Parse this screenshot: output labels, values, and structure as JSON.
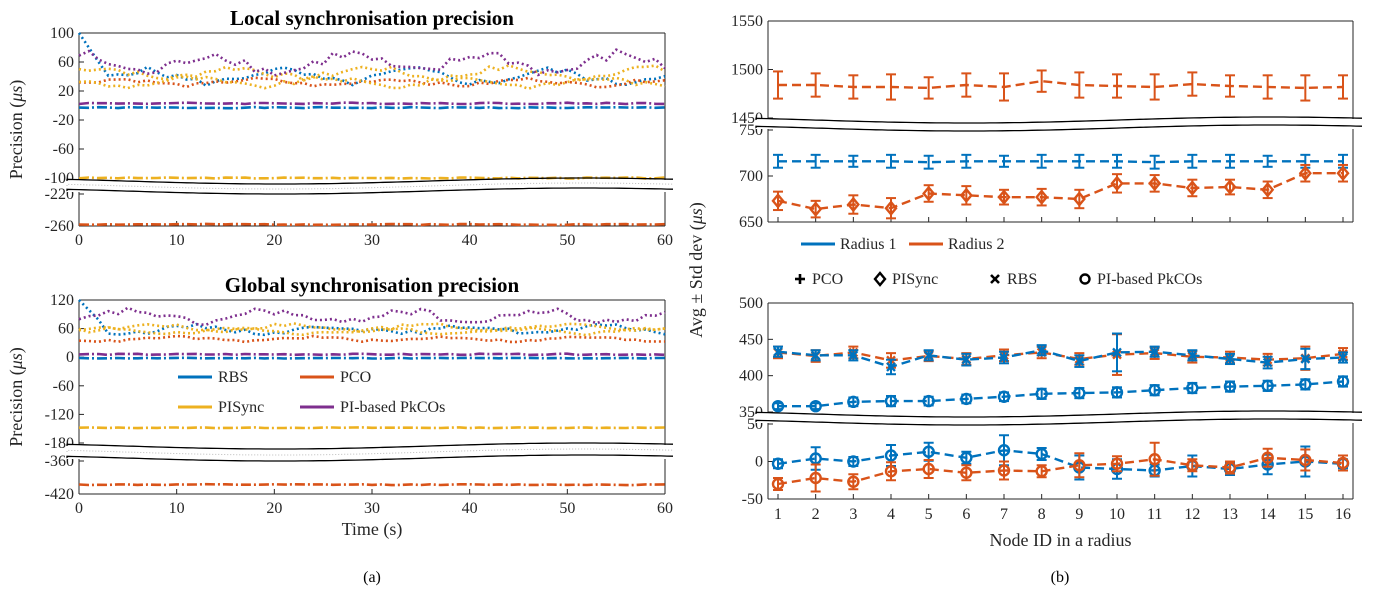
{
  "captions": {
    "a": "(a)",
    "b": "(b)"
  },
  "chart_data": [
    {
      "type": "line",
      "title": "Local synchronisation precision",
      "xlabel": "",
      "ylabel_main": "Precision (",
      "ylabel_unit": "μs",
      "ylabel_close": ")",
      "x_ticks": [
        "0",
        "10",
        "20",
        "30",
        "40",
        "50",
        "60"
      ],
      "xlim": [
        0,
        60
      ],
      "upper_segment": {
        "ylim": [
          -100,
          100
        ],
        "ticks": [
          "100",
          "60",
          "20",
          "-20",
          "-60",
          "-100"
        ]
      },
      "lower_segment": {
        "ylim": [
          -260,
          -220
        ],
        "ticks": [
          "-220",
          "-260"
        ]
      },
      "colors": {
        "RBS": "#0072BD",
        "PCO": "#D95319",
        "PISync": "#EDB120",
        "PI-based PkCOs": "#7E2F8E"
      },
      "series": [
        {
          "name": "RBS",
          "style": "dashdot",
          "mean": -3,
          "amp": 1.5,
          "seed": 1
        },
        {
          "name": "PCO",
          "style": "dashdot",
          "mean": -258,
          "amp": 1.2,
          "seed": 2
        },
        {
          "name": "PISync",
          "style": "dashdot",
          "mean": -100,
          "amp": 1.5,
          "seed": 3
        },
        {
          "name": "PI-based PkCOs",
          "style": "dashdot",
          "mean": 3,
          "amp": 2,
          "seed": 4
        },
        {
          "name": "RBS",
          "style": "dotted",
          "mean": 40,
          "amp": 12,
          "seed": 5,
          "start": 100
        },
        {
          "name": "PCO",
          "style": "dotted",
          "mean": 32,
          "amp": 6,
          "seed": 6
        },
        {
          "name": "PISync",
          "style": "dotted",
          "mean": 45,
          "amp": 10,
          "seed": 7
        },
        {
          "name": "PI-based PkCOs",
          "style": "dotted",
          "mean": 58,
          "amp": 18,
          "seed": 8
        },
        {
          "name": "PISync",
          "style": "dotted",
          "mean": 32,
          "amp": 8,
          "seed": 9
        }
      ]
    },
    {
      "type": "line",
      "title": "Global synchronisation precision",
      "xlabel": "Time (s)",
      "ylabel_main": "Precision (",
      "ylabel_unit": "μs",
      "ylabel_close": ")",
      "x_ticks": [
        "0",
        "10",
        "20",
        "30",
        "40",
        "50",
        "60"
      ],
      "xlim": [
        0,
        60
      ],
      "upper_segment": {
        "ylim": [
          -180,
          120
        ],
        "ticks": [
          "120",
          "60",
          "0",
          "-60",
          "-120",
          "-180"
        ]
      },
      "lower_segment": {
        "ylim": [
          -420,
          -360
        ],
        "ticks": [
          "-360",
          "-420"
        ]
      },
      "legend": [
        "RBS",
        "PCO",
        "PISync",
        "PI-based PkCOs"
      ],
      "legend_position": "center",
      "colors": {
        "RBS": "#0072BD",
        "PCO": "#D95319",
        "PISync": "#EDB120",
        "PI-based PkCOs": "#7E2F8E"
      },
      "series": [
        {
          "name": "RBS",
          "style": "dashdot",
          "mean": -2,
          "amp": 1.5,
          "seed": 11
        },
        {
          "name": "PCO",
          "style": "dashdot",
          "mean": -403,
          "amp": 1.5,
          "seed": 12
        },
        {
          "name": "PISync",
          "style": "dashdot",
          "mean": -148,
          "amp": 1.5,
          "seed": 13
        },
        {
          "name": "PI-based PkCOs",
          "style": "dashdot",
          "mean": 6,
          "amp": 2.5,
          "seed": 14
        },
        {
          "name": "RBS",
          "style": "dotted",
          "mean": 58,
          "amp": 10,
          "seed": 15,
          "start": 120
        },
        {
          "name": "PCO",
          "style": "dotted",
          "mean": 38,
          "amp": 6,
          "seed": 16
        },
        {
          "name": "PISync",
          "style": "dotted",
          "mean": 62,
          "amp": 9,
          "seed": 17
        },
        {
          "name": "PI-based PkCOs",
          "style": "dotted",
          "mean": 85,
          "amp": 18,
          "seed": 18
        },
        {
          "name": "PISync",
          "style": "dotted",
          "mean": 55,
          "amp": 8,
          "seed": 19
        }
      ]
    },
    {
      "type": "line",
      "title": "",
      "xlabel": "Node ID in a radius",
      "ylabel_main": "Avg ± Std dev (",
      "ylabel_unit": "μs",
      "ylabel_close": ")",
      "categories": [
        "1",
        "2",
        "3",
        "4",
        "5",
        "6",
        "7",
        "8",
        "9",
        "10",
        "11",
        "12",
        "13",
        "14",
        "15",
        "16"
      ],
      "legend_radius": [
        "Radius 1",
        "Radius 2"
      ],
      "legend_methods": [
        {
          "marker": "plus",
          "label": "PCO"
        },
        {
          "marker": "diamond",
          "label": "PISync"
        },
        {
          "marker": "cross",
          "label": "RBS"
        },
        {
          "marker": "circle",
          "label": "PI-based PkCOs"
        }
      ],
      "colors": {
        "Radius 1": "#0072BD",
        "Radius 2": "#D95319"
      },
      "panels": [
        {
          "segments": [
            {
              "ylim": [
                1450,
                1550
              ],
              "ticks": [
                "1550",
                "1500",
                "1450"
              ]
            },
            {
              "ylim": [
                650,
                750
              ],
              "ticks": [
                "750",
                "700",
                "650"
              ]
            }
          ],
          "series": [
            {
              "name": "Radius 2",
              "method": "PCO",
              "marker": "plus",
              "values": [
                1484,
                1484,
                1482,
                1482,
                1481,
                1484,
                1482,
                1488,
                1484,
                1483,
                1482,
                1485,
                1483,
                1482,
                1481,
                1482
              ],
              "err": [
                14,
                12,
                12,
                13,
                11,
                12,
                14,
                11,
                13,
                12,
                13,
                12,
                11,
                12,
                13,
                12
              ]
            },
            {
              "name": "Radius 1",
              "method": "PCO",
              "marker": "plus",
              "values": [
                716,
                716,
                716,
                716,
                715,
                716,
                716,
                716,
                716,
                716,
                715,
                716,
                716,
                716,
                716,
                716
              ],
              "err": [
                7,
                7,
                6,
                7,
                7,
                7,
                6,
                7,
                7,
                7,
                7,
                7,
                7,
                6,
                7,
                7
              ]
            },
            {
              "name": "Radius 2",
              "method": "PISync",
              "marker": "diamond",
              "values": [
                673,
                664,
                669,
                665,
                681,
                679,
                677,
                677,
                675,
                692,
                692,
                687,
                688,
                685,
                703,
                703
              ],
              "err": [
                10,
                9,
                10,
                11,
                9,
                10,
                8,
                9,
                10,
                10,
                9,
                9,
                8,
                9,
                9,
                9
              ]
            }
          ]
        },
        {
          "segments": [
            {
              "ylim": [
                350,
                500
              ],
              "ticks": [
                "500",
                "450",
                "400",
                "350"
              ]
            },
            {
              "ylim": [
                -50,
                50
              ],
              "ticks": [
                "50",
                "0",
                "-50"
              ]
            }
          ],
          "series": [
            {
              "name": "Radius 2",
              "method": "RBS",
              "marker": "cross",
              "values": [
                432,
                427,
                432,
                421,
                427,
                423,
                428,
                432,
                423,
                429,
                431,
                426,
                425,
                422,
                424,
                430
              ],
              "err": [
                8,
                8,
                8,
                10,
                7,
                8,
                8,
                8,
                8,
                28,
                8,
                8,
                8,
                8,
                16,
                8
              ]
            },
            {
              "name": "Radius 1",
              "method": "RBS",
              "marker": "cross",
              "values": [
                433,
                428,
                428,
                412,
                428,
                422,
                425,
                435,
                420,
                432,
                433,
                428,
                423,
                418,
                423,
                425
              ],
              "err": [
                7,
                7,
                7,
                10,
                7,
                8,
                8,
                7,
                8,
                26,
                7,
                7,
                7,
                8,
                14,
                7
              ]
            },
            {
              "name": "Radius 1",
              "method": "PI-based PkCOs",
              "marker": "circle",
              "values": [
                358,
                358,
                364,
                365,
                365,
                368,
                371,
                375,
                376,
                377,
                380,
                383,
                385,
                386,
                388,
                392
              ],
              "err": [
                4,
                4,
                6,
                7,
                6,
                6,
                6,
                7,
                7,
                7,
                7,
                7,
                7,
                7,
                7,
                7
              ]
            },
            {
              "name": "Radius 1",
              "method": "RBS-low",
              "marker": "circle",
              "values": [
                -3,
                4,
                0,
                8,
                13,
                5,
                15,
                10,
                -8,
                -10,
                -12,
                -6,
                -10,
                -4,
                0,
                -3
              ],
              "err": [
                6,
                15,
                6,
                14,
                12,
                8,
                20,
                8,
                16,
                13,
                8,
                14,
                8,
                13,
                20,
                6
              ]
            },
            {
              "name": "Radius 2",
              "method": "PCO-low",
              "marker": "circle",
              "values": [
                -30,
                -22,
                -27,
                -13,
                -10,
                -15,
                -12,
                -13,
                -5,
                -3,
                3,
                -5,
                -8,
                5,
                2,
                -2
              ],
              "err": [
                8,
                18,
                10,
                12,
                12,
                10,
                12,
                8,
                16,
                10,
                22,
                8,
                8,
                12,
                14,
                10
              ]
            }
          ]
        }
      ]
    }
  ]
}
